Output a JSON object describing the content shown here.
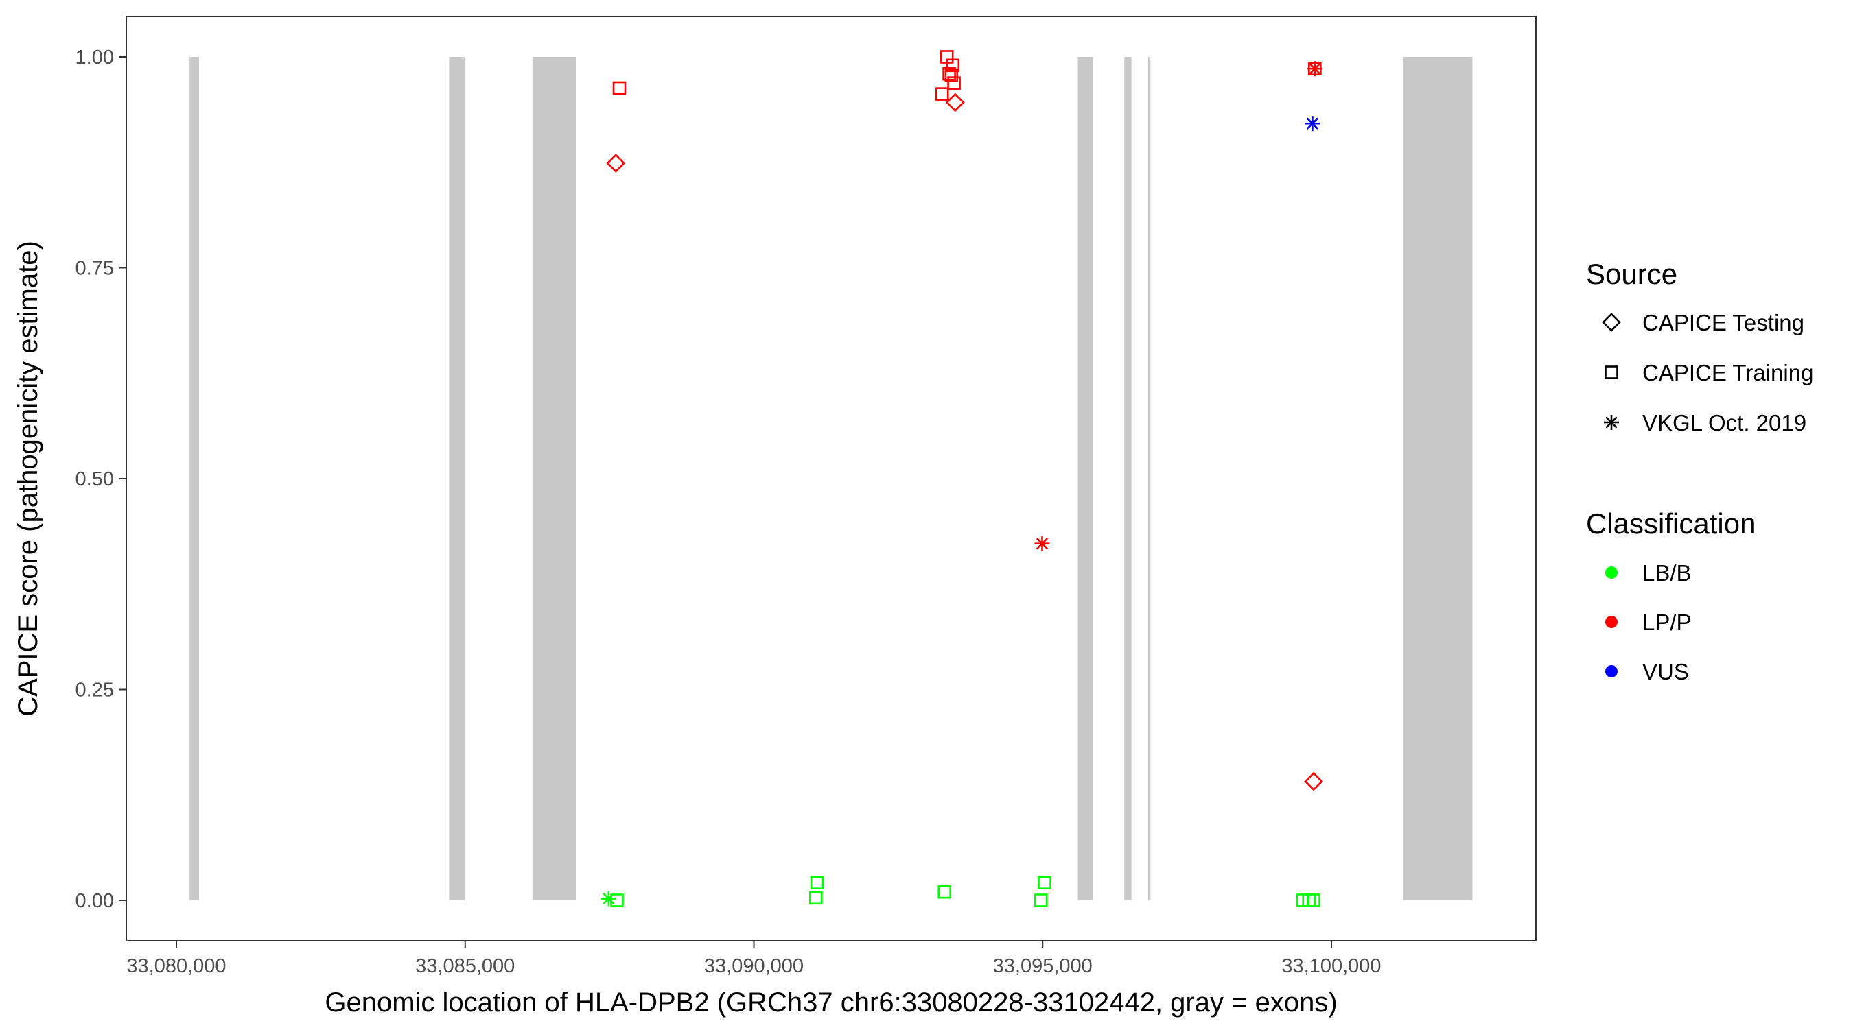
{
  "chart_data": {
    "type": "scatter",
    "title": "",
    "xlabel": "Genomic location of HLA-DPB2 (GRCh37 chr6:33080228-33102442, gray = exons)",
    "ylabel": "CAPICE score (pathogenicity estimate)",
    "xlim": [
      33079130,
      33103530
    ],
    "ylim": [
      -0.046,
      1.048
    ],
    "x_ticks": [
      33080000,
      33085000,
      33090000,
      33095000,
      33100000
    ],
    "x_tick_labels": [
      "33,080,000",
      "33,085,000",
      "33,090,000",
      "33,095,000",
      "33,100,000"
    ],
    "y_ticks": [
      0,
      0.25,
      0.5,
      0.75,
      1.0
    ],
    "y_tick_labels": [
      "0.00",
      "0.25",
      "0.50",
      "0.75",
      "1.00"
    ],
    "grid": false,
    "exon_color": "#C8C8C8",
    "exons": [
      [
        33080228,
        33080392
      ],
      [
        33084722,
        33084990
      ],
      [
        33086165,
        33086928
      ],
      [
        33095609,
        33095877
      ],
      [
        33096414,
        33096537
      ],
      [
        33096826,
        33096867
      ],
      [
        33101239,
        33102442
      ]
    ],
    "legend": {
      "placement": "right",
      "source_title": "Source",
      "source_items": [
        {
          "label": "CAPICE Testing",
          "shape": "diamond"
        },
        {
          "label": "CAPICE Training",
          "shape": "square"
        },
        {
          "label": "VKGL Oct. 2019",
          "shape": "asterisk"
        }
      ],
      "class_title": "Classification",
      "class_items": [
        {
          "label": "LB/B",
          "color": "#00FF00"
        },
        {
          "label": "LP/P",
          "color": "#FF0000"
        },
        {
          "label": "VUS",
          "color": "#0000FF"
        }
      ]
    },
    "points": [
      {
        "x": 33087671,
        "y": 0.963,
        "source": "CAPICE Training",
        "class": "LP/P"
      },
      {
        "x": 33087609,
        "y": 0.874,
        "source": "CAPICE Testing",
        "class": "LP/P"
      },
      {
        "x": 33093341,
        "y": 1.0,
        "source": "CAPICE Training",
        "class": "LP/P"
      },
      {
        "x": 33093444,
        "y": 0.99,
        "source": "CAPICE Training",
        "class": "LP/P"
      },
      {
        "x": 33093382,
        "y": 0.98,
        "source": "CAPICE Training",
        "class": "LP/P"
      },
      {
        "x": 33093420,
        "y": 0.978,
        "source": "CAPICE Training",
        "class": "LP/P"
      },
      {
        "x": 33093465,
        "y": 0.969,
        "source": "CAPICE Training",
        "class": "LP/P"
      },
      {
        "x": 33093259,
        "y": 0.956,
        "source": "CAPICE Training",
        "class": "LP/P"
      },
      {
        "x": 33093485,
        "y": 0.946,
        "source": "CAPICE Testing",
        "class": "LP/P"
      },
      {
        "x": 33094991,
        "y": 0.423,
        "source": "VKGL Oct. 2019",
        "class": "LP/P"
      },
      {
        "x": 33099713,
        "y": 0.986,
        "source": "CAPICE Training",
        "class": "LP/P"
      },
      {
        "x": 33099713,
        "y": 0.986,
        "source": "VKGL Oct. 2019",
        "class": "LP/P"
      },
      {
        "x": 33099672,
        "y": 0.921,
        "source": "VKGL Oct. 2019",
        "class": "VUS"
      },
      {
        "x": 33099692,
        "y": 0.141,
        "source": "CAPICE Testing",
        "class": "LP/P"
      },
      {
        "x": 33087485,
        "y": 0.002,
        "source": "VKGL Oct. 2019",
        "class": "LB/B"
      },
      {
        "x": 33087629,
        "y": 0.0,
        "source": "CAPICE Training",
        "class": "LB/B"
      },
      {
        "x": 33091094,
        "y": 0.021,
        "source": "CAPICE Training",
        "class": "LB/B"
      },
      {
        "x": 33091073,
        "y": 0.003,
        "source": "CAPICE Training",
        "class": "LB/B"
      },
      {
        "x": 33093300,
        "y": 0.01,
        "source": "CAPICE Training",
        "class": "LB/B"
      },
      {
        "x": 33095033,
        "y": 0.021,
        "source": "CAPICE Training",
        "class": "LB/B"
      },
      {
        "x": 33094971,
        "y": 0.0,
        "source": "CAPICE Training",
        "class": "LB/B"
      },
      {
        "x": 33099507,
        "y": 0.0,
        "source": "CAPICE Training",
        "class": "LB/B"
      },
      {
        "x": 33099610,
        "y": 0.0,
        "source": "CAPICE Training",
        "class": "LB/B"
      },
      {
        "x": 33099692,
        "y": 0.0,
        "source": "CAPICE Training",
        "class": "LB/B"
      }
    ]
  }
}
